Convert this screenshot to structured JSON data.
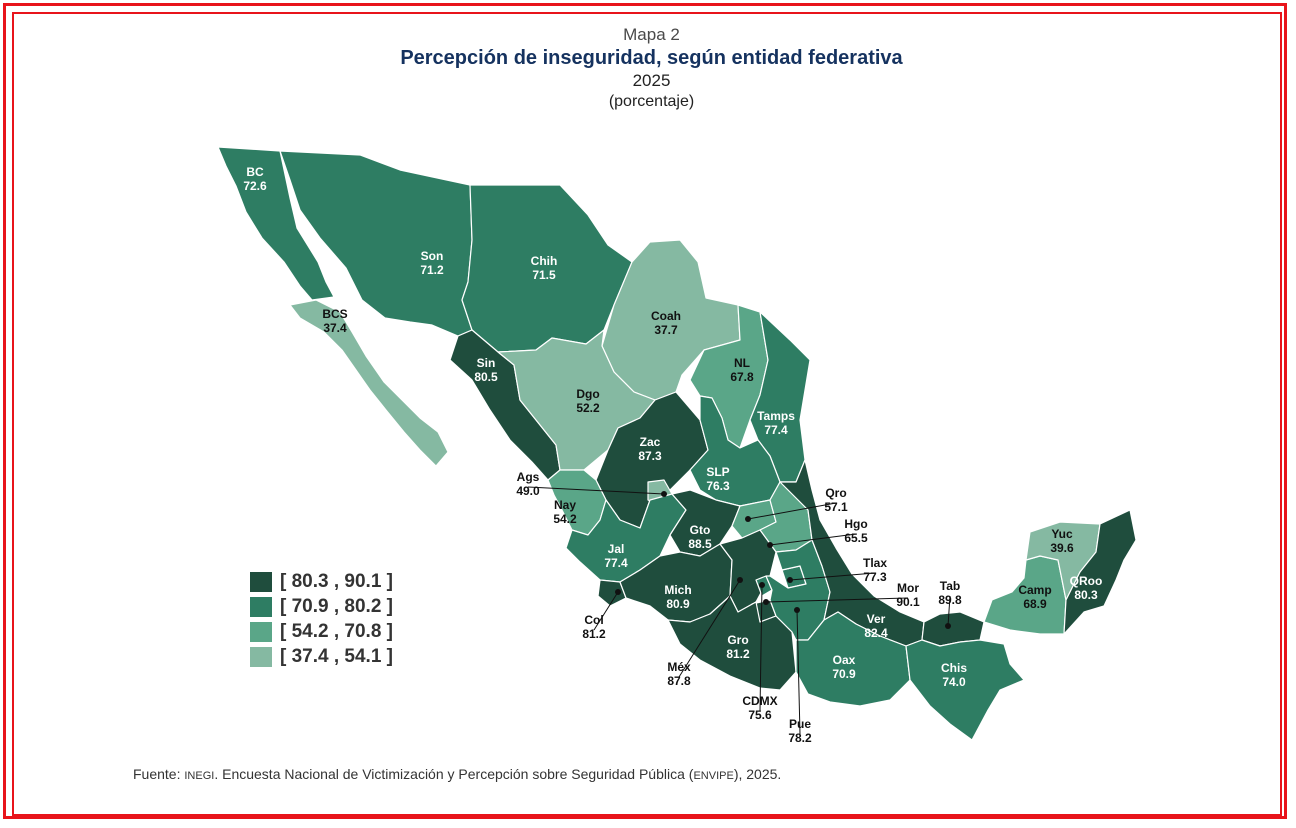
{
  "header": {
    "map_number": "Mapa 2",
    "title": "Percepción de inseguridad, según entidad federativa",
    "year": "2025",
    "unit": "(porcentaje)"
  },
  "colors": {
    "class1": "#1f4d3d",
    "class2": "#2e7d63",
    "class3": "#5aa688",
    "class4": "#85b9a2",
    "frame": "#e8141b",
    "title": "#15325f"
  },
  "legend": [
    {
      "label": "[ 80.3 , 90.1 ]",
      "color_key": "class1"
    },
    {
      "label": "[ 70.9 , 80.2 ]",
      "color_key": "class2"
    },
    {
      "label": "[ 54.2 , 70.8 ]",
      "color_key": "class3"
    },
    {
      "label": "[ 37.4 , 54.1 ]",
      "color_key": "class4"
    }
  ],
  "states": [
    {
      "abbr": "BC",
      "value": "72.6",
      "class": 2
    },
    {
      "abbr": "BCS",
      "value": "37.4",
      "class": 4
    },
    {
      "abbr": "Son",
      "value": "71.2",
      "class": 2
    },
    {
      "abbr": "Chih",
      "value": "71.5",
      "class": 2
    },
    {
      "abbr": "Coah",
      "value": "37.7",
      "class": 4
    },
    {
      "abbr": "NL",
      "value": "67.8",
      "class": 3
    },
    {
      "abbr": "Tamps",
      "value": "77.4",
      "class": 2
    },
    {
      "abbr": "Sin",
      "value": "80.5",
      "class": 1
    },
    {
      "abbr": "Dgo",
      "value": "52.2",
      "class": 4
    },
    {
      "abbr": "Zac",
      "value": "87.3",
      "class": 1
    },
    {
      "abbr": "SLP",
      "value": "76.3",
      "class": 2
    },
    {
      "abbr": "Ags",
      "value": "49.0",
      "class": 4
    },
    {
      "abbr": "Nay",
      "value": "54.2",
      "class": 3
    },
    {
      "abbr": "Jal",
      "value": "77.4",
      "class": 2
    },
    {
      "abbr": "Gto",
      "value": "88.5",
      "class": 1
    },
    {
      "abbr": "Qro",
      "value": "57.1",
      "class": 3
    },
    {
      "abbr": "Hgo",
      "value": "65.5",
      "class": 3
    },
    {
      "abbr": "Tlax",
      "value": "77.3",
      "class": 2
    },
    {
      "abbr": "Col",
      "value": "81.2",
      "class": 1
    },
    {
      "abbr": "Mich",
      "value": "80.9",
      "class": 1
    },
    {
      "abbr": "Méx",
      "value": "87.8",
      "class": 1
    },
    {
      "abbr": "CDMX",
      "value": "75.6",
      "class": 2
    },
    {
      "abbr": "Mor",
      "value": "90.1",
      "class": 1
    },
    {
      "abbr": "Gro",
      "value": "81.2",
      "class": 1
    },
    {
      "abbr": "Pue",
      "value": "78.2",
      "class": 2
    },
    {
      "abbr": "Ver",
      "value": "82.4",
      "class": 1
    },
    {
      "abbr": "Oax",
      "value": "70.9",
      "class": 2
    },
    {
      "abbr": "Tab",
      "value": "89.8",
      "class": 1
    },
    {
      "abbr": "Chis",
      "value": "74.0",
      "class": 2
    },
    {
      "abbr": "Camp",
      "value": "68.9",
      "class": 3
    },
    {
      "abbr": "Yuc",
      "value": "39.6",
      "class": 4
    },
    {
      "abbr": "QRoo",
      "value": "80.3",
      "class": 1
    }
  ],
  "source": {
    "prefix": "Fuente: ",
    "org": "INEGI",
    "text1": ". Encuesta Nacional de Victimización y Percepción sobre Seguridad Pública (",
    "acronym": "ENVIPE",
    "text2": "), 2025."
  }
}
